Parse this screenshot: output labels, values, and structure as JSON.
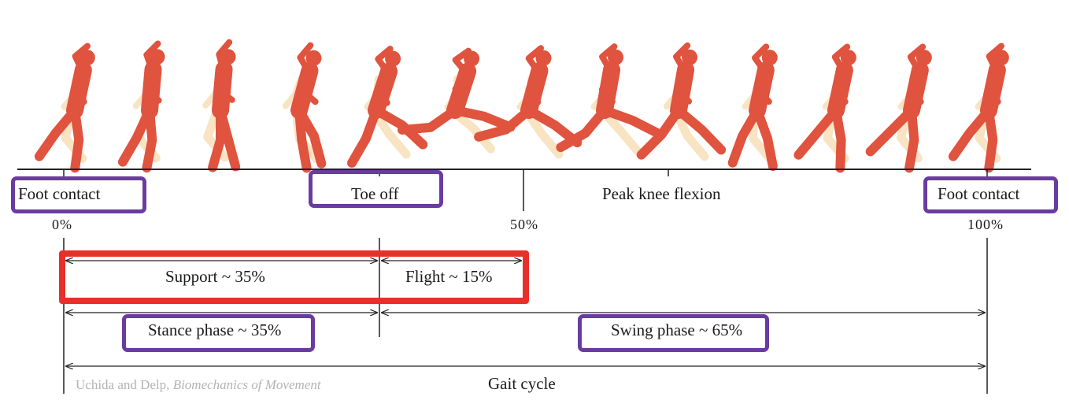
{
  "labels": {
    "foot_contact_start": "Foot contact",
    "toe_off": "Toe off",
    "peak_knee_flexion": "Peak knee flexion",
    "foot_contact_end": "Foot contact",
    "pct_0": "0%",
    "pct_50": "50%",
    "pct_100": "100%",
    "support": "Support ~ 35%",
    "flight": "Flight ~ 15%",
    "stance": "Stance phase ~ 35%",
    "swing": "Swing phase ~ 65%",
    "gait_cycle": "Gait cycle"
  },
  "credit": {
    "authors": "Uchida and Delp, ",
    "book": "Biomechanics of Movement"
  },
  "colors": {
    "runner": "#e0533e",
    "runner_shadow": "#f8e3c3",
    "highlight_red": "#e8302a",
    "highlight_purple": "#6a3ba0"
  },
  "runner_count": 13
}
